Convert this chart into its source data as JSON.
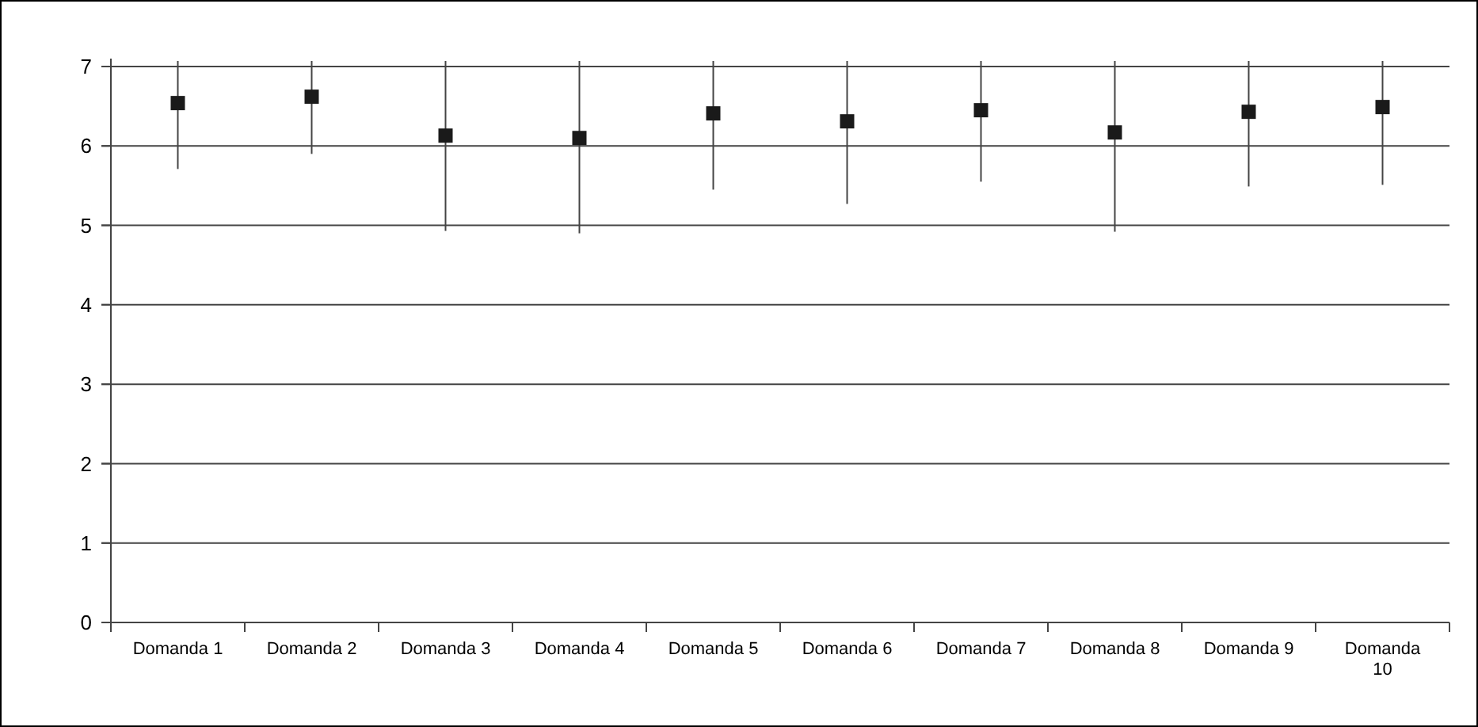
{
  "chart_data": {
    "type": "scatter",
    "categories": [
      "Domanda 1",
      "Domanda 2",
      "Domanda 3",
      "Domanda 4",
      "Domanda 5",
      "Domanda 6",
      "Domanda 7",
      "Domanda 8",
      "Domanda 9",
      "Domanda 10"
    ],
    "values": [
      6.54,
      6.62,
      6.13,
      6.1,
      6.41,
      6.31,
      6.45,
      6.17,
      6.43,
      6.49
    ],
    "errors": [
      [
        5.71,
        7.07
      ],
      [
        5.9,
        7.07
      ],
      [
        4.93,
        7.07
      ],
      [
        4.9,
        7.07
      ],
      [
        5.45,
        7.07
      ],
      [
        5.27,
        7.07
      ],
      [
        5.55,
        7.07
      ],
      [
        4.92,
        7.07
      ],
      [
        5.49,
        7.07
      ],
      [
        5.51,
        7.07
      ]
    ],
    "color": "#1a1a1a",
    "marker": "square",
    "ylim": [
      0,
      7.1
    ],
    "yticks": [
      0,
      1,
      2,
      3,
      4,
      5,
      6,
      7
    ],
    "grid": "y"
  }
}
